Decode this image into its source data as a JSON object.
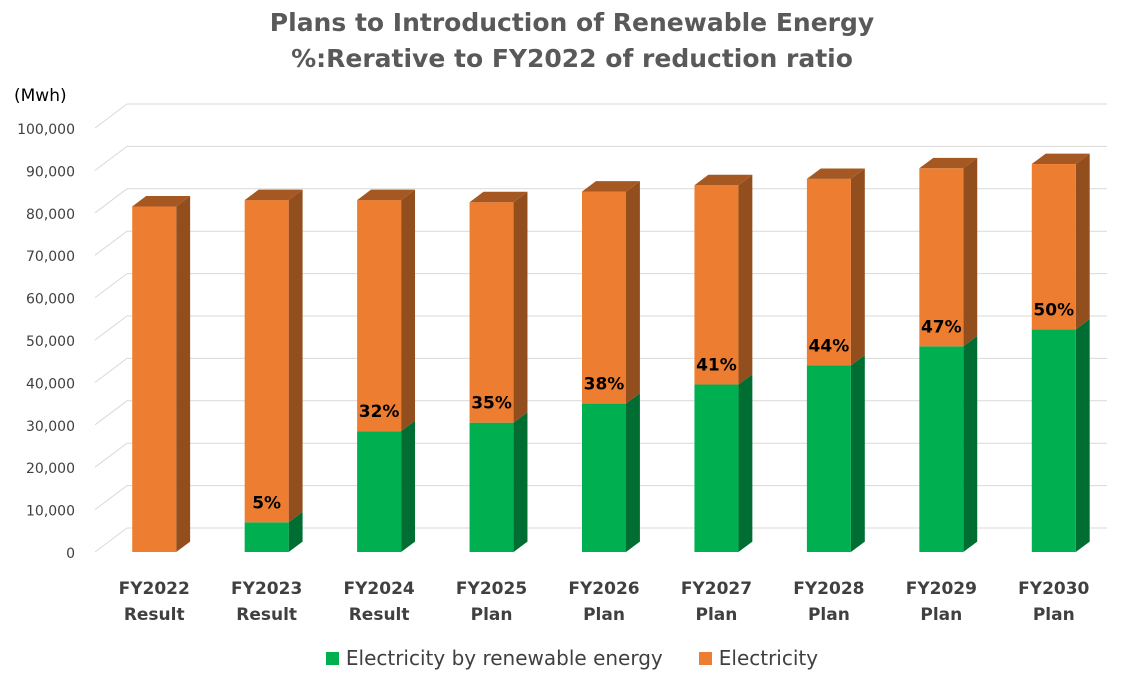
{
  "chart_data": {
    "type": "bar",
    "stacked": true,
    "three_d": true,
    "title": "Plans to Introduction of Renewable Energy",
    "subtitle": "%:Rerative to FY2022 of reduction ratio",
    "unit_label": "(Mwh)",
    "ylim": [
      0,
      100000
    ],
    "yticks": [
      "0",
      "10,000",
      "20,000",
      "30,000",
      "40,000",
      "50,000",
      "60,000",
      "70,000",
      "80,000",
      "90,000",
      "100,000"
    ],
    "grid": true,
    "legend_position": "bottom",
    "categories": [
      [
        "FY2022",
        "Result"
      ],
      [
        "FY2023",
        "Result"
      ],
      [
        "FY2024",
        "Result"
      ],
      [
        "FY2025",
        "Plan"
      ],
      [
        "FY2026",
        "Plan"
      ],
      [
        "FY2027",
        "Plan"
      ],
      [
        "FY2028",
        "Plan"
      ],
      [
        "FY2029",
        "Plan"
      ],
      [
        "FY2030",
        "Plan"
      ]
    ],
    "series": [
      {
        "name": "Electricity by renewable energy",
        "color": "#00b050",
        "values": [
          0,
          7000,
          28500,
          30500,
          35000,
          39500,
          44000,
          48500,
          52500
        ]
      },
      {
        "name": "Electricity",
        "color": "#ed7d31",
        "values": [
          81500,
          76000,
          54500,
          52000,
          50000,
          47000,
          44000,
          42000,
          39000
        ]
      }
    ],
    "data_labels": [
      "",
      "5%",
      "32%",
      "35%",
      "38%",
      "41%",
      "44%",
      "47%",
      "50%"
    ]
  }
}
